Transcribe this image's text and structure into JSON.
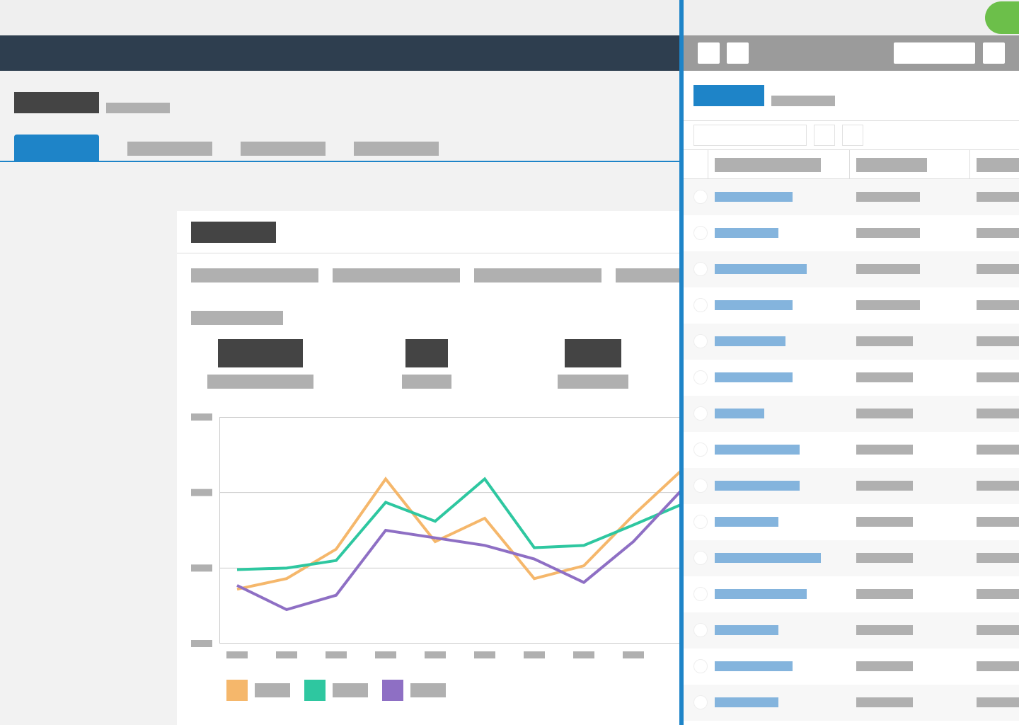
{
  "chart_data": {
    "type": "line",
    "series": [
      {
        "color": "#f5b76b",
        "values": [
          0.72,
          0.86,
          1.25,
          2.18,
          1.35,
          1.66,
          0.86,
          1.03,
          1.7,
          2.31
        ]
      },
      {
        "color": "#2ec7a0",
        "values": [
          0.98,
          1.0,
          1.1,
          1.87,
          1.62,
          2.18,
          1.27,
          1.3,
          1.57,
          1.85
        ]
      },
      {
        "color": "#8e6fc4",
        "values": [
          0.77,
          0.45,
          0.64,
          1.5,
          1.4,
          1.3,
          1.12,
          0.81,
          1.35,
          2.05
        ]
      }
    ],
    "ylim": [
      0,
      3
    ],
    "yticks": [
      0,
      1,
      2,
      3
    ],
    "grid": true
  }
}
